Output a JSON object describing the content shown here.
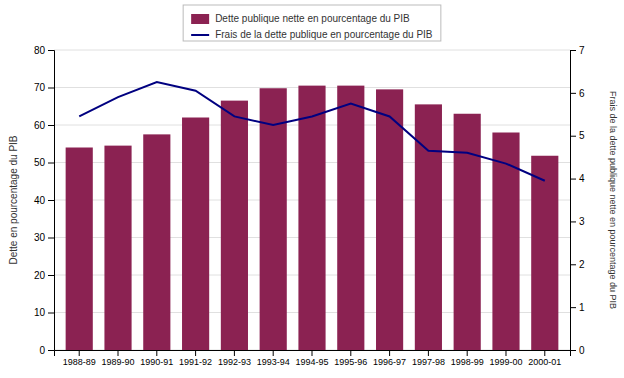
{
  "chart_data": {
    "type": "bar",
    "categories": [
      "1988-89",
      "1989-90",
      "1990-91",
      "1991-92",
      "1992-93",
      "1993-94",
      "1994-95",
      "1995-96",
      "1996-97",
      "1997-98",
      "1998-99",
      "1999-00",
      "2000-01"
    ],
    "series": [
      {
        "name": "Dette publique nette en pourcentage du PIB",
        "type": "bar",
        "color": "#8B2252",
        "values": [
          54.0,
          54.5,
          57.5,
          62.0,
          66.5,
          69.8,
          70.5,
          70.5,
          69.5,
          65.5,
          63.0,
          58.0,
          51.8
        ]
      },
      {
        "name": "Frais de la dette publique en pourcentage du PIB",
        "type": "line",
        "axis": "y2",
        "color": "#000080",
        "values": [
          5.45,
          5.9,
          6.25,
          6.05,
          5.45,
          5.25,
          5.45,
          5.75,
          5.45,
          4.65,
          4.6,
          4.35,
          3.95
        ]
      }
    ],
    "ylabel": "Dette en pourcentage du PIB",
    "y2label": "Frais de la dette publique nette en pourcentage du PIB",
    "ylim": [
      0,
      80
    ],
    "yticks": [
      0,
      10,
      20,
      30,
      40,
      50,
      60,
      70,
      80
    ],
    "y2lim": [
      0,
      7
    ],
    "y2ticks": [
      0,
      1,
      2,
      3,
      4,
      5,
      6,
      7
    ],
    "grid": true,
    "legend": "top"
  }
}
